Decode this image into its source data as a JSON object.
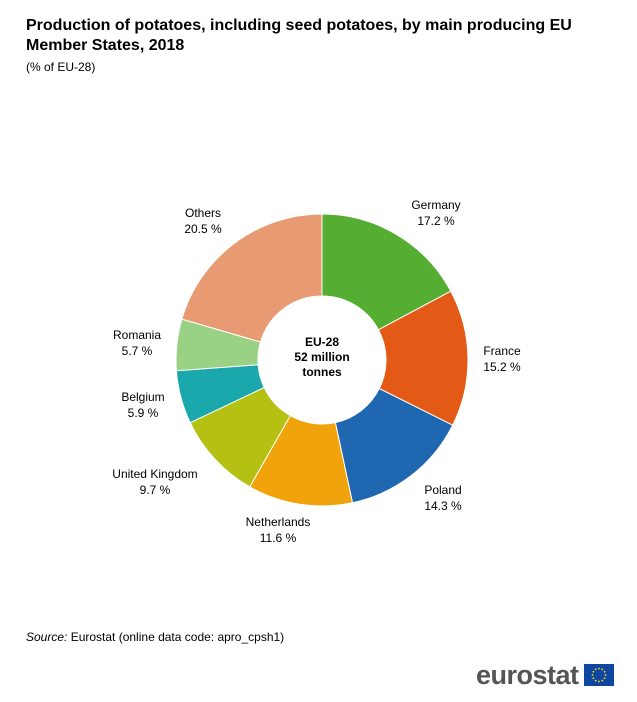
{
  "title": "Production of potatoes, including seed potatoes, by main producing EU Member States, 2018",
  "subtitle": "(% of EU-28)",
  "source": {
    "label": "Source:",
    "text": " Eurostat (online data code: apro_cpsh1)"
  },
  "logo": {
    "text": "eurostat",
    "flag_color": "#0e47a1",
    "star_color": "#ffdd00"
  },
  "chart_data": {
    "type": "pie",
    "variant": "donut",
    "center_label": [
      "EU-28",
      "52 million",
      "tonnes"
    ],
    "unit": "%",
    "slices": [
      {
        "label": "Germany",
        "value": 17.2,
        "value_text": "17.2 %",
        "color": "#55ad31"
      },
      {
        "label": "France",
        "value": 15.2,
        "value_text": "15.2 %",
        "color": "#e35a17"
      },
      {
        "label": "Poland",
        "value": 14.3,
        "value_text": "14.3 %",
        "color": "#1f68b1"
      },
      {
        "label": "Netherlands",
        "value": 11.6,
        "value_text": "11.6 %",
        "color": "#f0a30a"
      },
      {
        "label": "United Kingdom",
        "value": 9.7,
        "value_text": "9.7 %",
        "color": "#b5c112"
      },
      {
        "label": "Belgium",
        "value": 5.9,
        "value_text": "5.9 %",
        "color": "#1aa8ad"
      },
      {
        "label": "Romania",
        "value": 5.7,
        "value_text": "5.7 %",
        "color": "#99d284"
      },
      {
        "label": "Others",
        "value": 20.5,
        "value_text": "20.5 %",
        "color": "#e89b72"
      }
    ]
  }
}
